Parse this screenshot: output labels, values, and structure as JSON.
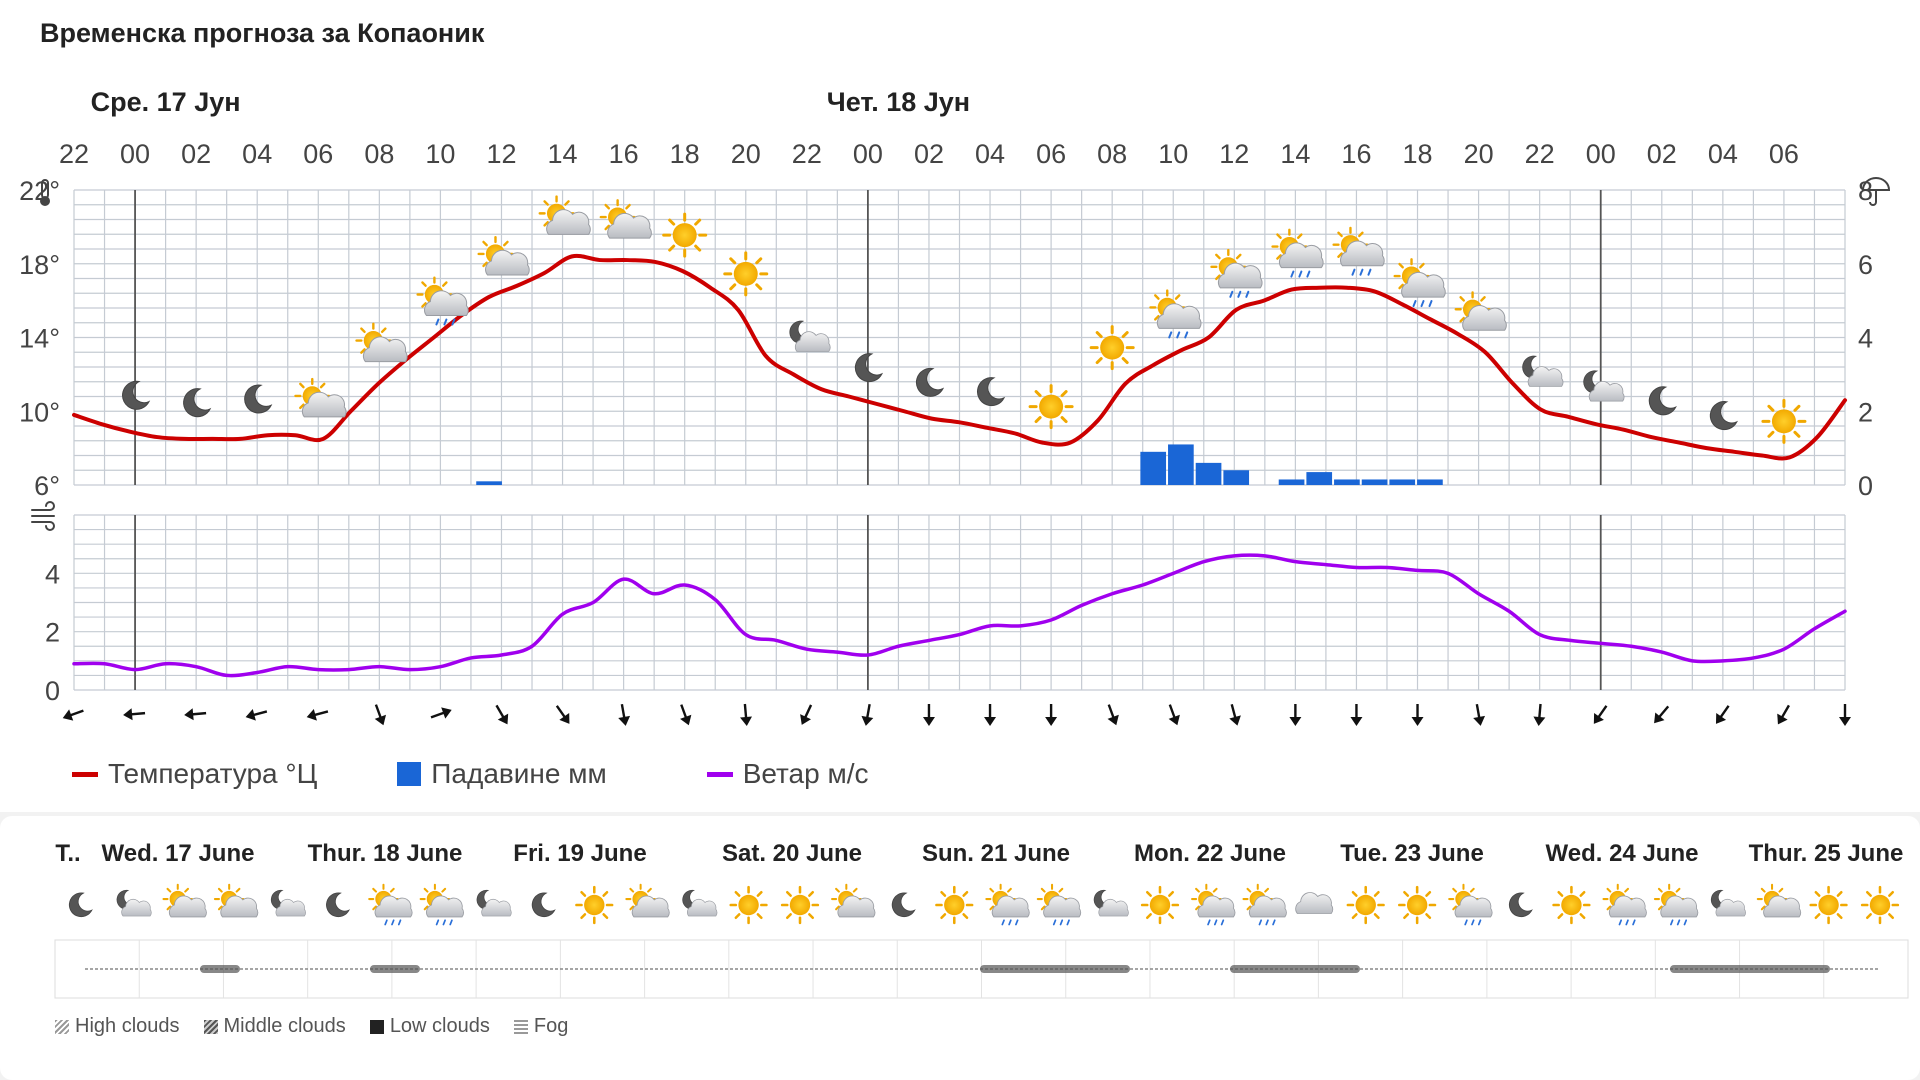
{
  "page_title": "Временска прогноза за Копаоник",
  "chart_data": [
    {
      "type": "line",
      "title": "",
      "date_labels": [
        {
          "label": "Сре. 17 Јун",
          "hour_index": 3
        },
        {
          "label": "Чет. 18 Јун",
          "hour_index": 27
        }
      ],
      "x_labels": [
        "22",
        "00",
        "02",
        "04",
        "06",
        "08",
        "10",
        "12",
        "14",
        "16",
        "18",
        "20",
        "22",
        "00",
        "02",
        "04",
        "06",
        "08",
        "10",
        "12",
        "14",
        "16",
        "18",
        "20",
        "22",
        "00",
        "02",
        "04",
        "06"
      ],
      "y_left_ticks": [
        "6°",
        "10°",
        "14°",
        "18°",
        "22°"
      ],
      "y_left_values": [
        6,
        10,
        14,
        18,
        22
      ],
      "y_right_ticks": [
        "0",
        "2",
        "4",
        "6",
        "8"
      ],
      "y_right_values": [
        0,
        2,
        4,
        6,
        8
      ],
      "ylim_temperature": [
        6,
        22
      ],
      "ylim_precipitation": [
        0,
        8
      ],
      "grid": true,
      "series": [
        {
          "name": "Температура °Ц",
          "unit": "°Ц",
          "color": "#cc0000",
          "values": [
            9.8,
            9.3,
            8.9,
            8.6,
            8.5,
            8.5,
            8.5,
            8.7,
            8.7,
            8.5,
            10,
            11.5,
            12.8,
            14,
            15.2,
            16.2,
            16.8,
            17.5,
            18.4,
            18.2,
            18.2,
            18.1,
            17.6,
            16.7,
            15.5,
            13,
            12,
            11.2,
            10.8,
            10.4,
            10,
            9.6,
            9.4,
            9.1,
            8.8,
            8.3,
            8.3,
            9.5,
            11.5,
            12.5,
            13.3,
            14,
            15.5,
            16,
            16.6,
            16.7,
            16.7,
            16.5,
            15.8,
            15,
            14.2,
            13.2,
            11.5,
            10.1,
            9.7,
            9.3,
            9,
            8.6,
            8.3,
            8,
            7.8,
            7.6,
            7.5,
            8.6,
            10.6
          ]
        },
        {
          "name": "Падавине мм",
          "unit": "мм",
          "color": "#1a66d6",
          "type": "bar",
          "values": [
            0,
            0,
            0,
            0,
            0,
            0,
            0,
            0,
            0,
            0,
            0,
            0,
            0,
            0,
            0,
            0.1,
            0,
            0,
            0,
            0,
            0,
            0,
            0,
            0,
            0,
            0,
            0,
            0,
            0,
            0,
            0,
            0,
            0,
            0,
            0,
            0,
            0,
            0,
            0,
            0.9,
            1.1,
            0.6,
            0.4,
            0,
            0.15,
            0.35,
            0.15,
            0.15,
            0.15,
            0.15,
            0,
            0,
            0,
            0,
            0,
            0,
            0,
            0,
            0,
            0,
            0,
            0,
            0,
            0,
            0
          ]
        }
      ],
      "weather_icons": [
        {
          "hour_index": 2,
          "icon": "moon"
        },
        {
          "hour_index": 4,
          "icon": "moon"
        },
        {
          "hour_index": 6,
          "icon": "moon"
        },
        {
          "hour_index": 8,
          "icon": "sun-cloud"
        },
        {
          "hour_index": 10,
          "icon": "sun-cloud"
        },
        {
          "hour_index": 12,
          "icon": "sun-cloud-rain"
        },
        {
          "hour_index": 14,
          "icon": "sun-cloud"
        },
        {
          "hour_index": 16,
          "icon": "sun-cloud"
        },
        {
          "hour_index": 18,
          "icon": "sun-cloud"
        },
        {
          "hour_index": 20,
          "icon": "sun"
        },
        {
          "hour_index": 22,
          "icon": "sun"
        },
        {
          "hour_index": 24,
          "icon": "moon-cloud"
        },
        {
          "hour_index": 26,
          "icon": "moon"
        },
        {
          "hour_index": 28,
          "icon": "moon"
        },
        {
          "hour_index": 30,
          "icon": "moon"
        },
        {
          "hour_index": 32,
          "icon": "sun"
        },
        {
          "hour_index": 34,
          "icon": "sun"
        },
        {
          "hour_index": 36,
          "icon": "sun-cloud-rain"
        },
        {
          "hour_index": 38,
          "icon": "sun-cloud-rain"
        },
        {
          "hour_index": 40,
          "icon": "sun-cloud-rain"
        },
        {
          "hour_index": 42,
          "icon": "sun-cloud-rain"
        },
        {
          "hour_index": 44,
          "icon": "sun-cloud-rain"
        },
        {
          "hour_index": 46,
          "icon": "sun-cloud"
        },
        {
          "hour_index": 48,
          "icon": "moon-cloud"
        },
        {
          "hour_index": 50,
          "icon": "moon-cloud"
        },
        {
          "hour_index": 52,
          "icon": "moon"
        },
        {
          "hour_index": 54,
          "icon": "moon"
        },
        {
          "hour_index": 56,
          "icon": "sun"
        }
      ]
    },
    {
      "type": "line",
      "title": "",
      "y_ticks": [
        "0",
        "2",
        "4"
      ],
      "y_values": [
        0,
        2,
        4
      ],
      "ylim": [
        0,
        6
      ],
      "series": [
        {
          "name": "Ветар м/с",
          "unit": "м/с",
          "color": "#a000ee",
          "values": [
            0.9,
            0.9,
            0.7,
            0.9,
            0.8,
            0.5,
            0.6,
            0.8,
            0.7,
            0.7,
            0.8,
            0.7,
            0.8,
            1.1,
            1.2,
            1.5,
            2.6,
            3,
            3.8,
            3.3,
            3.6,
            3.1,
            1.9,
            1.7,
            1.4,
            1.3,
            1.2,
            1.5,
            1.7,
            1.9,
            2.2,
            2.2,
            2.4,
            2.9,
            3.3,
            3.6,
            4,
            4.4,
            4.6,
            4.6,
            4.4,
            4.3,
            4.2,
            4.2,
            4.1,
            4,
            3.3,
            2.7,
            1.9,
            1.7,
            1.6,
            1.5,
            1.3,
            1,
            1,
            1.1,
            1.4,
            2.1,
            2.7
          ]
        }
      ],
      "wind_directions_deg": [
        250,
        265,
        265,
        255,
        255,
        160,
        70,
        150,
        145,
        170,
        160,
        175,
        205,
        190,
        180,
        180,
        180,
        160,
        160,
        165,
        180,
        180,
        180,
        170,
        185,
        215,
        220,
        215,
        210,
        180
      ]
    }
  ],
  "legend": {
    "temperature": "Температура °Ц",
    "precipitation": "Падавине мм",
    "wind": "Ветар м/с"
  },
  "colors": {
    "temperature": "#cc0000",
    "precipitation": "#1a66d6",
    "wind": "#a000ee"
  },
  "bottom": {
    "day_labels": [
      "T..",
      "Wed. 17 June",
      "Thur. 18 June",
      "Fri. 19 June",
      "Sat. 20 June",
      "Sun. 21 June",
      "Mon. 22 June",
      "Tue. 23 June",
      "Wed. 24 June",
      "Thur. 25 June"
    ],
    "icons": [
      "moon",
      "moon-cloud",
      "sun-cloud",
      "sun-cloud",
      "moon-cloud",
      "moon",
      "sun-cloud-rain",
      "sun-cloud-rain",
      "moon-cloud",
      "moon",
      "sun",
      "sun-cloud",
      "moon-cloud",
      "sun",
      "sun",
      "sun-cloud",
      "moon",
      "sun",
      "sun-cloud-rain",
      "sun-cloud-rain",
      "moon-cloud",
      "sun",
      "sun-cloud-rain",
      "sun-cloud-rain",
      "cloud",
      "sun",
      "sun",
      "sun-cloud-rain",
      "moon",
      "sun",
      "sun-cloud-rain",
      "sun-cloud-rain",
      "moon-cloud",
      "sun-cloud",
      "sun",
      "sun"
    ],
    "cloud_legend": [
      "High clouds",
      "Middle clouds",
      "Low clouds",
      "Fog"
    ]
  }
}
